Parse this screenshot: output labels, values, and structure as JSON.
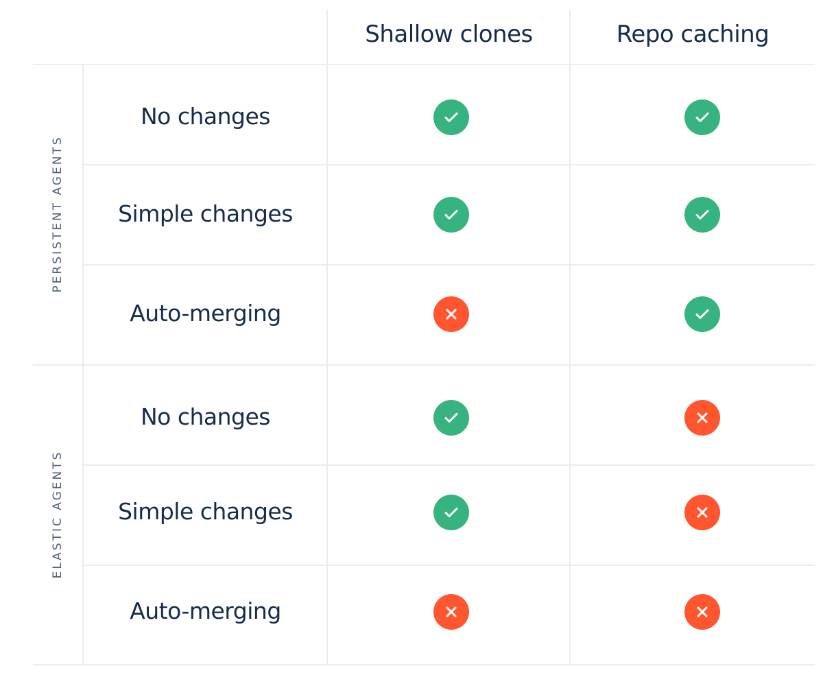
{
  "columns": [
    "Shallow clones",
    "Repo caching"
  ],
  "groups": [
    {
      "label": "PERSISTENT AGENTS",
      "rows": [
        {
          "label": "No changes",
          "values": [
            "check",
            "check"
          ]
        },
        {
          "label": "Simple changes",
          "values": [
            "check",
            "check"
          ]
        },
        {
          "label": "Auto-merging",
          "values": [
            "cross",
            "check"
          ]
        }
      ]
    },
    {
      "label": "ELASTIC AGENTS",
      "rows": [
        {
          "label": "No changes",
          "values": [
            "check",
            "cross"
          ]
        },
        {
          "label": "Simple changes",
          "values": [
            "check",
            "cross"
          ]
        },
        {
          "label": "Auto-merging",
          "values": [
            "cross",
            "cross"
          ]
        }
      ]
    }
  ],
  "colors": {
    "check": "#36B37E",
    "cross": "#FF5630",
    "text": "#172B4D",
    "group_label": "#505F79",
    "grid": "#EBECF0"
  }
}
